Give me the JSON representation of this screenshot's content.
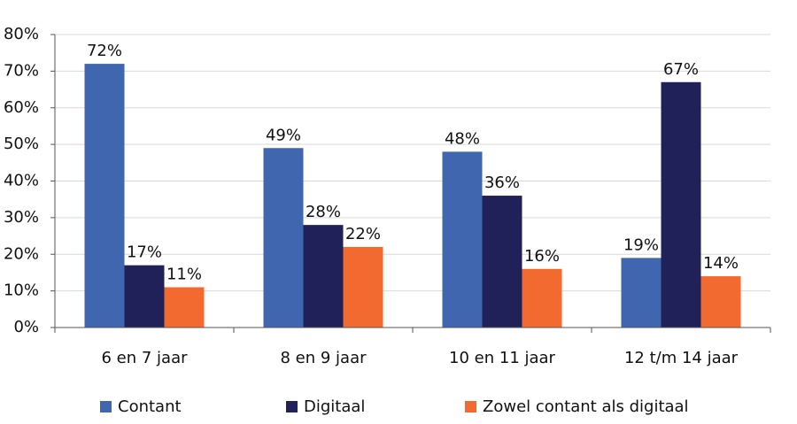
{
  "chart_data": {
    "type": "bar",
    "categories": [
      "6 en 7 jaar",
      "8 en 9 jaar",
      "10 en 11 jaar",
      "12 t/m 14 jaar"
    ],
    "series": [
      {
        "name": "Contant",
        "color": "#3f66ae",
        "values": [
          72,
          49,
          48,
          19
        ],
        "value_labels": [
          "72%",
          "49%",
          "48%",
          "19%"
        ]
      },
      {
        "name": "Digitaal",
        "color": "#1f2158",
        "values": [
          17,
          28,
          36,
          67
        ],
        "value_labels": [
          "17%",
          "28%",
          "36%",
          "67%"
        ]
      },
      {
        "name": "Zowel contant als digitaal",
        "color": "#f26a2f",
        "values": [
          11,
          22,
          16,
          14
        ],
        "value_labels": [
          "11%",
          "22%",
          "16%",
          "14%"
        ]
      }
    ],
    "ylim": [
      0,
      80
    ],
    "yticks": [
      {
        "value": 0,
        "label": "0%"
      },
      {
        "value": 10,
        "label": "10%"
      },
      {
        "value": 20,
        "label": "20%"
      },
      {
        "value": 30,
        "label": "30%"
      },
      {
        "value": 40,
        "label": "40%"
      },
      {
        "value": 50,
        "label": "50%"
      },
      {
        "value": 60,
        "label": "60%"
      },
      {
        "value": 70,
        "label": "70%"
      },
      {
        "value": 80,
        "label": "80%"
      }
    ],
    "grid": true
  }
}
